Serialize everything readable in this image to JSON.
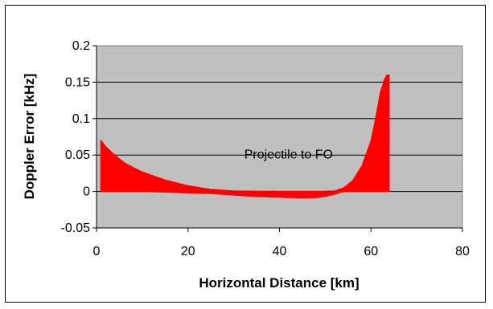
{
  "chart_data": {
    "type": "area",
    "xlabel": "Horizontal Distance [km]",
    "ylabel": "Doppler Error [kHz]",
    "xlim": [
      0,
      80
    ],
    "ylim": [
      -0.05,
      0.2
    ],
    "x_ticks": [
      "0",
      "20",
      "40",
      "60",
      "80"
    ],
    "y_ticks": [
      "-0.05",
      "0",
      "0.05",
      "0.1",
      "0.15",
      "0.2"
    ],
    "grid": "horizontal",
    "plot_background": "#c0c0c0",
    "annotations": [
      {
        "text": "Projectile to FO",
        "x": 42,
        "y": 0.045
      }
    ],
    "series": [
      {
        "color": "#ff0000",
        "upper": {
          "x": [
            1,
            2,
            4,
            6,
            8,
            10,
            15,
            20,
            25,
            30,
            35,
            40,
            45,
            50,
            52,
            54,
            56,
            58,
            60,
            61,
            62,
            63,
            63.5,
            64
          ],
          "y": [
            0.07,
            0.062,
            0.05,
            0.04,
            0.033,
            0.027,
            0.016,
            0.008,
            0.003,
            0.001,
            0.0005,
            0.0003,
            0.0003,
            0.0005,
            0.001,
            0.005,
            0.015,
            0.035,
            0.07,
            0.1,
            0.135,
            0.155,
            0.16,
            0.16
          ]
        },
        "lower": {
          "x": [
            1,
            5,
            10,
            15,
            20,
            25,
            30,
            35,
            40,
            45,
            48,
            50,
            52,
            53.5,
            54.5,
            60,
            64
          ],
          "y": [
            0,
            0,
            0,
            -0.001,
            -0.002,
            -0.003,
            -0.005,
            -0.007,
            -0.008,
            -0.009,
            -0.0085,
            -0.007,
            -0.004,
            -0.001,
            0,
            0,
            0
          ]
        }
      }
    ]
  }
}
